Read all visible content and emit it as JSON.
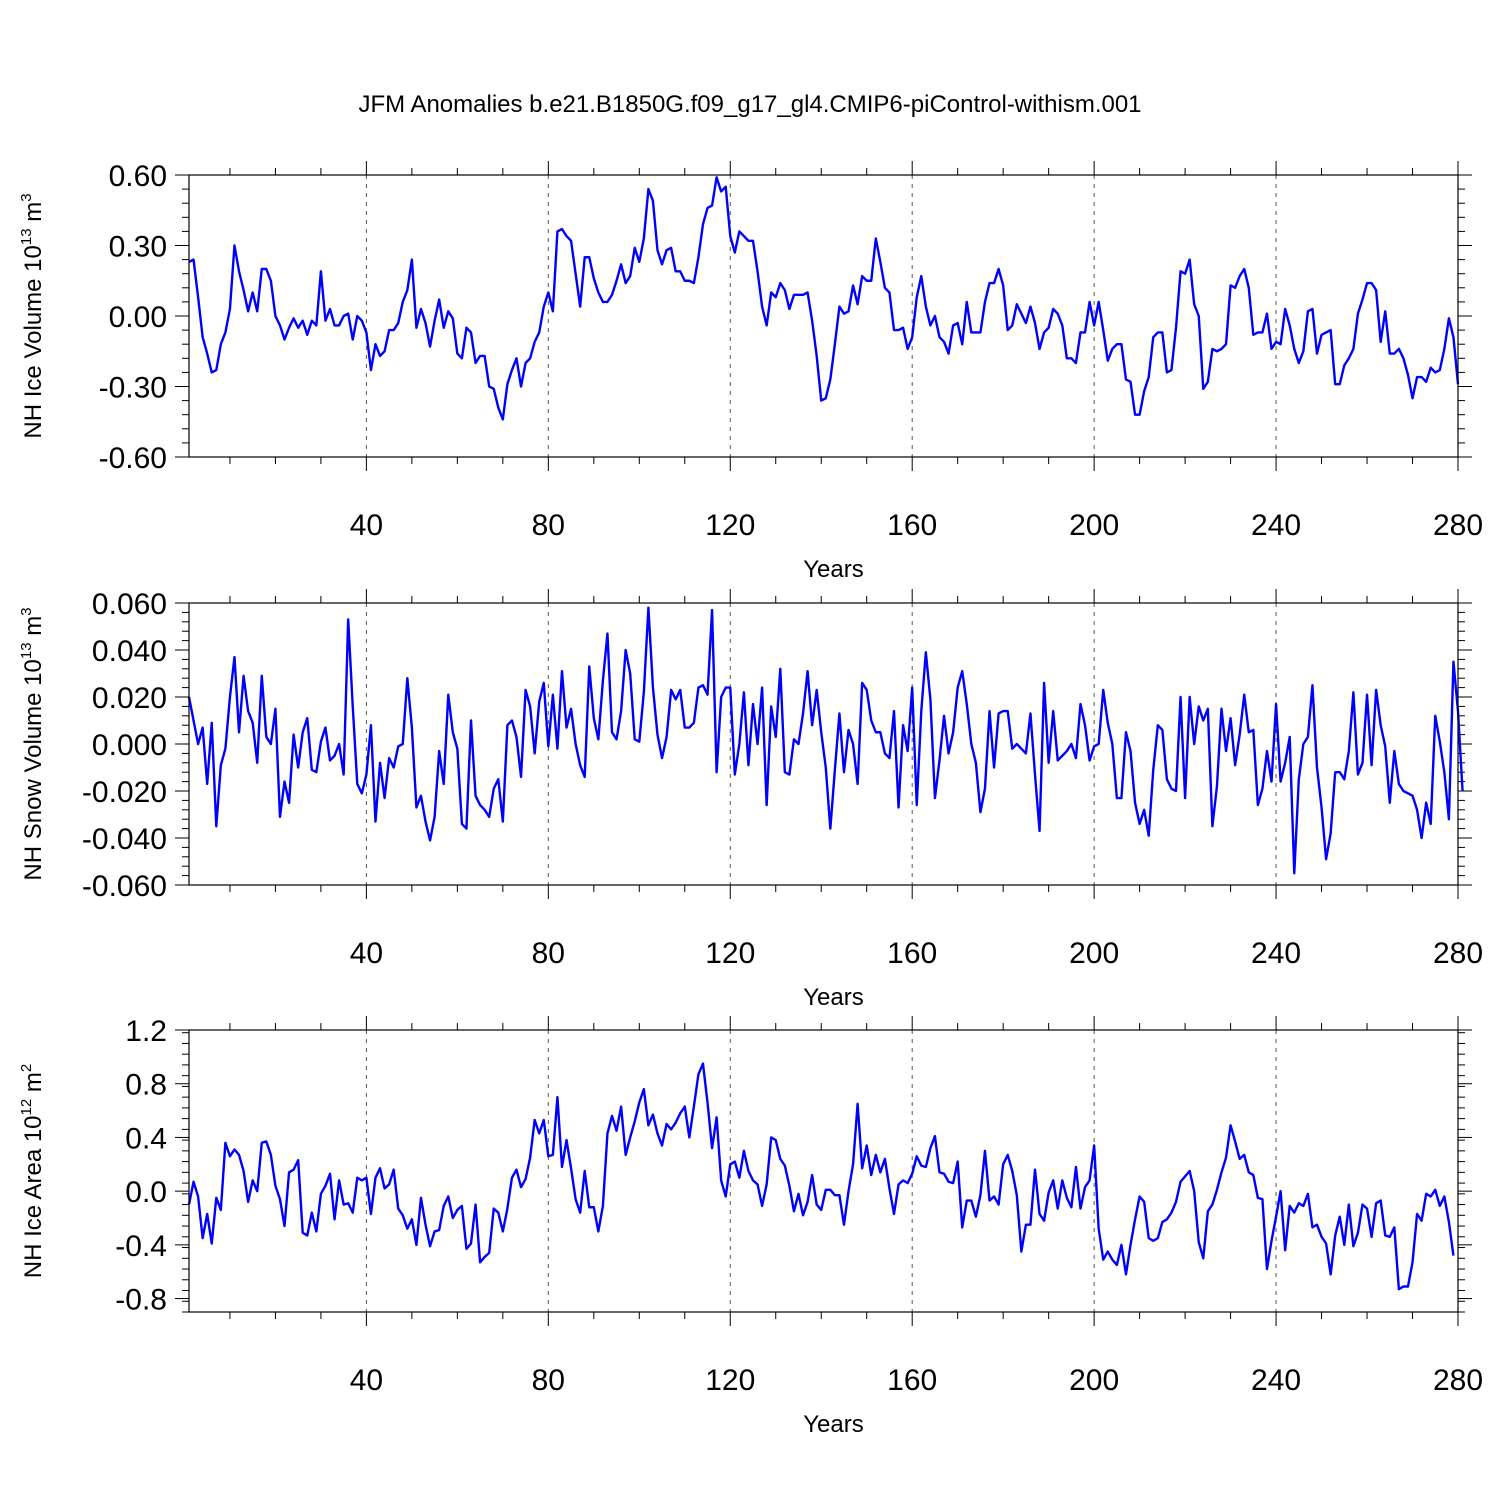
{
  "figure": {
    "title": "JFM Anomalies b.e21.B1850G.f09_g17_gl4.CMIP6-piControl-withism.001"
  },
  "chart_data": [
    {
      "type": "line",
      "title": "",
      "xlabel": "Years",
      "ylabel": {
        "base": "NH Ice Volume 10",
        "exp": "13",
        "unit": " m",
        "unit_exp": "3"
      },
      "xlim": [
        1,
        280
      ],
      "ylim": [
        -0.6,
        0.6
      ],
      "x_ticks": [
        40,
        80,
        120,
        160,
        200,
        240,
        280
      ],
      "x_tick_labels": [
        "40",
        "80",
        "120",
        "160",
        "200",
        "240",
        "280"
      ],
      "y_ticks": [
        -0.6,
        -0.3,
        0.0,
        0.3,
        0.6
      ],
      "y_tick_labels": [
        "-0.60",
        "-0.30",
        "0.00",
        "0.30",
        "0.60"
      ],
      "grid": "x dashed",
      "color": "#0000ff",
      "x_start": 1,
      "values": [
        0.23,
        0.24,
        0.08,
        -0.09,
        -0.16,
        -0.24,
        -0.23,
        -0.12,
        -0.07,
        0.03,
        0.3,
        0.19,
        0.11,
        0.02,
        0.1,
        0.02,
        0.2,
        0.2,
        0.15,
        0.0,
        -0.04,
        -0.1,
        -0.05,
        -0.01,
        -0.05,
        -0.02,
        -0.08,
        -0.02,
        -0.04,
        0.19,
        -0.02,
        0.03,
        -0.04,
        -0.04,
        0.0,
        0.01,
        -0.1,
        0.0,
        -0.02,
        -0.07,
        -0.23,
        -0.12,
        -0.17,
        -0.15,
        -0.06,
        -0.06,
        -0.03,
        0.06,
        0.11,
        0.24,
        -0.05,
        0.03,
        -0.03,
        -0.13,
        -0.02,
        0.07,
        -0.05,
        0.02,
        -0.01,
        -0.16,
        -0.18,
        -0.05,
        -0.07,
        -0.2,
        -0.17,
        -0.17,
        -0.3,
        -0.31,
        -0.39,
        -0.44,
        -0.29,
        -0.23,
        -0.18,
        -0.3,
        -0.2,
        -0.18,
        -0.11,
        -0.07,
        0.04,
        0.1,
        0.02,
        0.36,
        0.37,
        0.34,
        0.32,
        0.18,
        0.04,
        0.25,
        0.25,
        0.16,
        0.1,
        0.06,
        0.06,
        0.09,
        0.15,
        0.22,
        0.14,
        0.17,
        0.29,
        0.23,
        0.33,
        0.54,
        0.49,
        0.28,
        0.22,
        0.28,
        0.29,
        0.19,
        0.19,
        0.15,
        0.15,
        0.14,
        0.25,
        0.39,
        0.46,
        0.47,
        0.59,
        0.53,
        0.55,
        0.34,
        0.27,
        0.36,
        0.34,
        0.32,
        0.32,
        0.19,
        0.04,
        -0.04,
        0.1,
        0.08,
        0.14,
        0.11,
        0.03,
        0.09,
        0.09,
        0.09,
        0.1,
        -0.02,
        -0.17,
        -0.36,
        -0.35,
        -0.27,
        -0.12,
        0.04,
        0.01,
        0.02,
        0.13,
        0.05,
        0.17,
        0.15,
        0.15,
        0.33,
        0.23,
        0.12,
        0.1,
        -0.06,
        -0.06,
        -0.05,
        -0.14,
        -0.09,
        0.08,
        0.17,
        0.04,
        -0.04,
        0.0,
        -0.09,
        -0.11,
        -0.16,
        -0.04,
        -0.03,
        -0.12,
        0.06,
        -0.07,
        -0.07,
        -0.07,
        0.06,
        0.14,
        0.14,
        0.2,
        0.13,
        -0.06,
        -0.04,
        0.05,
        0.01,
        -0.03,
        0.04,
        -0.03,
        -0.14,
        -0.07,
        -0.05,
        0.03,
        0.01,
        -0.04,
        -0.18,
        -0.18,
        -0.2,
        -0.07,
        -0.07,
        0.06,
        -0.04,
        0.06,
        -0.06,
        -0.19,
        -0.14,
        -0.12,
        -0.12,
        -0.27,
        -0.28,
        -0.42,
        -0.42,
        -0.32,
        -0.26,
        -0.09,
        -0.07,
        -0.07,
        -0.24,
        -0.23,
        -0.05,
        0.19,
        0.18,
        0.24,
        0.05,
        0.0,
        -0.31,
        -0.28,
        -0.14,
        -0.15,
        -0.14,
        -0.12,
        0.13,
        0.12,
        0.17,
        0.2,
        0.12,
        -0.08,
        -0.07,
        -0.07,
        0.01,
        -0.14,
        -0.11,
        -0.12,
        0.03,
        -0.04,
        -0.14,
        -0.2,
        -0.15,
        0.02,
        0.03,
        -0.16,
        -0.08,
        -0.07,
        -0.06,
        -0.29,
        -0.29,
        -0.21,
        -0.18,
        -0.14,
        0.01,
        0.07,
        0.14,
        0.14,
        0.11,
        -0.11,
        0.02,
        -0.16,
        -0.16,
        -0.14,
        -0.18,
        -0.25,
        -0.35,
        -0.26,
        -0.26,
        -0.28,
        -0.22,
        -0.24,
        -0.23,
        -0.14,
        -0.01,
        -0.09,
        -0.29
      ]
    },
    {
      "type": "line",
      "title": "",
      "xlabel": "Years",
      "ylabel": {
        "base": "NH Snow Volume 10",
        "exp": "13",
        "unit": " m",
        "unit_exp": "3"
      },
      "xlim": [
        1,
        280
      ],
      "ylim": [
        -0.06,
        0.06
      ],
      "x_ticks": [
        40,
        80,
        120,
        160,
        200,
        240,
        280
      ],
      "x_tick_labels": [
        "40",
        "80",
        "120",
        "160",
        "200",
        "240",
        "280"
      ],
      "y_ticks": [
        -0.06,
        -0.04,
        -0.02,
        0.0,
        0.02,
        0.04,
        0.06
      ],
      "y_tick_labels": [
        "-0.060",
        "-0.040",
        "-0.020",
        "0.000",
        "0.020",
        "0.040",
        "0.060"
      ],
      "grid": "x dashed",
      "color": "#0000ff",
      "x_start": 1,
      "values": [
        0.02,
        0.01,
        0.0,
        0.007,
        -0.017,
        0.009,
        -0.035,
        -0.009,
        -0.002,
        0.02,
        0.037,
        0.005,
        0.029,
        0.014,
        0.009,
        -0.008,
        0.029,
        0.003,
        0.0,
        0.015,
        -0.031,
        -0.016,
        -0.025,
        0.004,
        -0.01,
        0.005,
        0.011,
        -0.011,
        -0.012,
        0.001,
        0.007,
        -0.007,
        -0.005,
        0.0,
        -0.013,
        0.053,
        0.016,
        -0.017,
        -0.021,
        -0.013,
        0.008,
        -0.033,
        -0.008,
        -0.023,
        -0.006,
        -0.01,
        -0.001,
        0.0,
        0.028,
        0.007,
        -0.027,
        -0.022,
        -0.033,
        -0.041,
        -0.031,
        -0.003,
        -0.017,
        0.021,
        0.005,
        -0.002,
        -0.034,
        -0.036,
        0.01,
        -0.022,
        -0.026,
        -0.028,
        -0.031,
        -0.019,
        -0.015,
        -0.033,
        0.008,
        0.01,
        0.003,
        -0.014,
        0.023,
        0.016,
        -0.004,
        0.018,
        0.026,
        -0.001,
        0.021,
        -0.002,
        0.031,
        0.007,
        0.015,
        0.0,
        -0.009,
        -0.014,
        0.033,
        0.011,
        0.002,
        0.027,
        0.047,
        0.005,
        0.002,
        0.014,
        0.04,
        0.03,
        0.002,
        0.001,
        0.022,
        0.058,
        0.024,
        0.004,
        -0.006,
        0.003,
        0.023,
        0.019,
        0.023,
        0.007,
        0.007,
        0.009,
        0.024,
        0.025,
        0.021,
        0.057,
        -0.012,
        0.02,
        0.024,
        0.024,
        -0.013,
        0.0,
        0.022,
        -0.009,
        0.017,
        0.0,
        0.024,
        -0.026,
        0.016,
        0.003,
        0.032,
        -0.012,
        -0.013,
        0.002,
        0.0,
        0.013,
        0.031,
        0.008,
        0.023,
        0.005,
        -0.01,
        -0.036,
        -0.011,
        0.013,
        -0.012,
        0.006,
        0.0,
        -0.017,
        0.026,
        0.023,
        0.01,
        0.005,
        0.005,
        -0.004,
        -0.006,
        0.014,
        -0.027,
        0.008,
        -0.003,
        0.024,
        -0.026,
        0.014,
        0.039,
        0.019,
        -0.023,
        -0.007,
        0.012,
        -0.004,
        0.005,
        0.024,
        0.031,
        0.017,
        0.0,
        -0.008,
        -0.029,
        -0.019,
        0.014,
        -0.01,
        0.013,
        0.014,
        0.014,
        -0.002,
        0.0,
        -0.002,
        -0.004,
        0.013,
        -0.013,
        -0.037,
        0.026,
        -0.008,
        0.014,
        -0.007,
        -0.005,
        -0.003,
        0.0,
        -0.006,
        0.017,
        0.008,
        -0.007,
        -0.001,
        0.0,
        0.023,
        0.009,
        0.0,
        -0.023,
        -0.023,
        0.005,
        -0.003,
        -0.025,
        -0.034,
        -0.028,
        -0.039,
        -0.011,
        0.008,
        0.006,
        -0.015,
        -0.019,
        -0.02,
        0.02,
        -0.023,
        0.02,
        0.0,
        0.016,
        0.01,
        0.015,
        -0.035,
        -0.018,
        0.015,
        -0.003,
        0.011,
        -0.009,
        0.004,
        0.021,
        0.005,
        0.006,
        -0.026,
        -0.019,
        -0.003,
        -0.016,
        0.017,
        -0.016,
        -0.008,
        0.003,
        -0.055,
        -0.015,
        0.0,
        0.003,
        0.025,
        -0.01,
        -0.027,
        -0.049,
        -0.038,
        -0.012,
        -0.012,
        -0.015,
        -0.003,
        0.022,
        -0.013,
        -0.008,
        0.021,
        -0.009,
        0.023,
        0.008,
        -0.001,
        -0.025,
        -0.003,
        -0.017,
        -0.02,
        -0.021,
        -0.022,
        -0.028,
        -0.04,
        -0.025,
        -0.034,
        0.012,
        0.001,
        -0.012,
        -0.032,
        0.035,
        0.014,
        -0.02
      ]
    },
    {
      "type": "line",
      "title": "",
      "xlabel": "Years",
      "ylabel": {
        "base": "NH Ice Area 10",
        "exp": "12",
        "unit": " m",
        "unit_exp": "2"
      },
      "xlim": [
        1,
        280
      ],
      "ylim": [
        -0.9,
        1.2
      ],
      "x_ticks": [
        40,
        80,
        120,
        160,
        200,
        240,
        280
      ],
      "x_tick_labels": [
        "40",
        "80",
        "120",
        "160",
        "200",
        "240",
        "280"
      ],
      "y_ticks": [
        -0.8,
        -0.4,
        0.0,
        0.4,
        0.8,
        1.2
      ],
      "y_tick_labels": [
        "-0.8",
        "-0.4",
        "0.0",
        "0.4",
        "0.8",
        "1.2"
      ],
      "grid": "x dashed",
      "color": "#0000ff",
      "x_start": 1,
      "values": [
        -0.1,
        0.07,
        -0.04,
        -0.35,
        -0.17,
        -0.39,
        -0.05,
        -0.14,
        0.36,
        0.26,
        0.31,
        0.27,
        0.15,
        -0.08,
        0.08,
        0.0,
        0.36,
        0.37,
        0.27,
        0.04,
        -0.06,
        -0.26,
        0.14,
        0.16,
        0.23,
        -0.31,
        -0.33,
        -0.16,
        -0.3,
        -0.02,
        0.04,
        0.13,
        -0.21,
        0.08,
        -0.1,
        -0.09,
        -0.16,
        0.1,
        0.08,
        0.1,
        -0.17,
        0.1,
        0.17,
        0.02,
        0.05,
        0.16,
        -0.13,
        -0.18,
        -0.28,
        -0.21,
        -0.4,
        -0.05,
        -0.25,
        -0.41,
        -0.3,
        -0.29,
        -0.11,
        -0.04,
        -0.2,
        -0.14,
        -0.11,
        -0.43,
        -0.39,
        -0.1,
        -0.53,
        -0.49,
        -0.46,
        -0.13,
        -0.16,
        -0.3,
        -0.13,
        0.1,
        0.16,
        0.03,
        0.09,
        0.25,
        0.53,
        0.43,
        0.53,
        0.26,
        0.27,
        0.7,
        0.18,
        0.38,
        0.17,
        -0.06,
        -0.16,
        0.15,
        -0.12,
        -0.12,
        -0.3,
        -0.11,
        0.43,
        0.56,
        0.45,
        0.63,
        0.27,
        0.4,
        0.52,
        0.66,
        0.76,
        0.49,
        0.57,
        0.43,
        0.34,
        0.5,
        0.46,
        0.51,
        0.58,
        0.63,
        0.4,
        0.63,
        0.87,
        0.95,
        0.66,
        0.32,
        0.55,
        0.08,
        -0.04,
        0.2,
        0.22,
        0.1,
        0.3,
        0.15,
        0.08,
        0.05,
        -0.11,
        0.05,
        0.4,
        0.38,
        0.24,
        0.19,
        0.04,
        -0.15,
        -0.02,
        -0.18,
        -0.08,
        0.12,
        -0.1,
        -0.14,
        0.01,
        0.01,
        -0.03,
        -0.03,
        -0.25,
        0.0,
        0.2,
        0.65,
        0.17,
        0.34,
        0.12,
        0.27,
        0.14,
        0.24,
        0.02,
        -0.17,
        0.05,
        0.08,
        0.06,
        0.13,
        0.26,
        0.19,
        0.18,
        0.32,
        0.41,
        0.14,
        0.13,
        0.07,
        0.06,
        0.22,
        -0.27,
        -0.07,
        -0.07,
        -0.19,
        -0.03,
        0.3,
        -0.07,
        -0.04,
        -0.1,
        0.2,
        0.27,
        0.15,
        -0.03,
        -0.45,
        -0.25,
        -0.25,
        0.16,
        -0.17,
        -0.22,
        -0.01,
        0.08,
        -0.13,
        0.08,
        -0.05,
        -0.12,
        0.18,
        -0.13,
        0.03,
        0.08,
        0.34,
        -0.28,
        -0.51,
        -0.45,
        -0.51,
        -0.55,
        -0.4,
        -0.62,
        -0.4,
        -0.21,
        -0.04,
        -0.08,
        -0.35,
        -0.37,
        -0.35,
        -0.23,
        -0.21,
        -0.16,
        -0.08,
        0.07,
        0.11,
        0.15,
        0.0,
        -0.38,
        -0.5,
        -0.15,
        -0.1,
        0.01,
        0.14,
        0.25,
        0.49,
        0.37,
        0.24,
        0.27,
        0.14,
        0.12,
        -0.05,
        -0.06,
        -0.58,
        -0.37,
        -0.19,
        0.0,
        -0.44,
        -0.11,
        -0.16,
        -0.09,
        -0.11,
        -0.02,
        -0.27,
        -0.25,
        -0.34,
        -0.39,
        -0.62,
        -0.33,
        -0.19,
        -0.4,
        -0.1,
        -0.41,
        -0.31,
        -0.1,
        -0.13,
        -0.34,
        -0.09,
        -0.07,
        -0.33,
        -0.34,
        -0.27,
        -0.73,
        -0.71,
        -0.71,
        -0.53,
        -0.17,
        -0.22,
        -0.02,
        -0.04,
        0.01,
        -0.11,
        -0.04,
        -0.23,
        -0.48
      ]
    }
  ]
}
